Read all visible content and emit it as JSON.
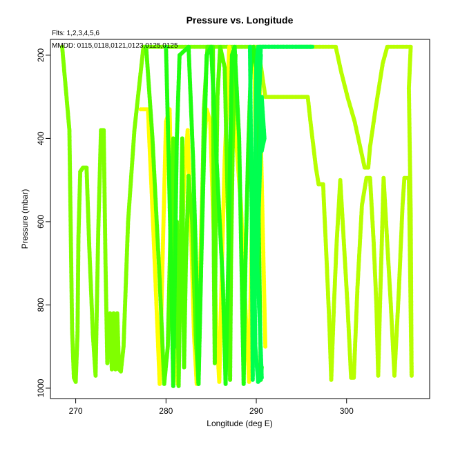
{
  "chart_data": {
    "type": "scatter",
    "title": "Pressure vs. Longitude",
    "xlabel": "Longitude (deg E)",
    "ylabel": "Pressure (mbar)",
    "annotations": {
      "flights": "Flts: 1,2,3,4,5,6",
      "dates": "MMDD: 0115,0118,0121,0123,0125,0125"
    },
    "xlim": [
      267.2,
      309.2
    ],
    "ylim": [
      1025,
      162
    ],
    "y_reversed": true,
    "xticks": [
      270,
      280,
      290,
      300
    ],
    "yticks": [
      200,
      400,
      600,
      800,
      1000
    ],
    "grid": false,
    "series": [
      {
        "color": "#80ff00",
        "points": [
          [
            268.5,
            180
          ],
          [
            269.3,
            380
          ],
          [
            269.6,
            860
          ],
          [
            269.8,
            975
          ],
          [
            270.0,
            985
          ],
          [
            270.2,
            870
          ],
          [
            270.3,
            640
          ],
          [
            270.5,
            480
          ],
          [
            270.8,
            470
          ],
          [
            271.2,
            470
          ],
          [
            271.5,
            660
          ],
          [
            271.9,
            870
          ],
          [
            272.2,
            970
          ],
          [
            272.5,
            620
          ],
          [
            272.8,
            380
          ],
          [
            273.1,
            380
          ],
          [
            273.3,
            700
          ],
          [
            273.5,
            940
          ],
          [
            273.8,
            820
          ],
          [
            274.0,
            955
          ],
          [
            274.2,
            820
          ],
          [
            274.4,
            955
          ],
          [
            274.6,
            820
          ],
          [
            274.8,
            955
          ],
          [
            275.0,
            960
          ],
          [
            275.3,
            900
          ],
          [
            275.8,
            600
          ],
          [
            276.5,
            380
          ],
          [
            277.5,
            180
          ],
          [
            289.0,
            180
          ],
          [
            292.0,
            180
          ],
          [
            296.3,
            180
          ]
        ]
      },
      {
        "color": "#ffff00",
        "points": [
          [
            277.2,
            330
          ],
          [
            278.0,
            330
          ],
          [
            278.6,
            620
          ],
          [
            279.0,
            830
          ],
          [
            279.3,
            990
          ],
          [
            279.7,
            620
          ],
          [
            280.0,
            360
          ],
          [
            280.4,
            330
          ],
          [
            280.7,
            640
          ],
          [
            281.0,
            870
          ],
          [
            281.3,
            990
          ],
          [
            281.7,
            700
          ],
          [
            282.0,
            500
          ],
          [
            282.4,
            380
          ],
          [
            282.8,
            640
          ],
          [
            283.1,
            870
          ],
          [
            283.4,
            990
          ],
          [
            283.8,
            700
          ],
          [
            284.1,
            460
          ],
          [
            284.5,
            330
          ],
          [
            284.9,
            360
          ],
          [
            285.3,
            640
          ],
          [
            285.6,
            870
          ],
          [
            285.9,
            985
          ],
          [
            286.2,
            700
          ],
          [
            286.5,
            450
          ],
          [
            286.8,
            300
          ],
          [
            287.0,
            180
          ],
          [
            287.5,
            330
          ],
          [
            288.3,
            560
          ],
          [
            288.8,
            810
          ],
          [
            289.2,
            985
          ],
          [
            289.5,
            620
          ],
          [
            289.9,
            420
          ],
          [
            289.8,
            180
          ],
          [
            290.3,
            200
          ],
          [
            290.8,
            700
          ],
          [
            291.0,
            900
          ]
        ]
      },
      {
        "color": "#b8ff00",
        "points": [
          [
            290.2,
            180
          ],
          [
            291.0,
            300
          ],
          [
            292.0,
            300
          ],
          [
            293.0,
            300
          ],
          [
            294.0,
            300
          ],
          [
            295.0,
            300
          ],
          [
            295.7,
            300
          ],
          [
            296.0,
            360
          ],
          [
            296.6,
            470
          ],
          [
            296.9,
            510
          ],
          [
            297.4,
            510
          ],
          [
            297.8,
            700
          ],
          [
            298.1,
            850
          ],
          [
            298.3,
            980
          ],
          [
            298.6,
            800
          ],
          [
            298.9,
            650
          ],
          [
            299.3,
            500
          ],
          [
            299.7,
            650
          ],
          [
            300.1,
            800
          ],
          [
            300.5,
            975
          ],
          [
            300.8,
            975
          ],
          [
            301.2,
            760
          ],
          [
            301.7,
            560
          ],
          [
            302.2,
            495
          ],
          [
            302.6,
            495
          ],
          [
            303.0,
            650
          ],
          [
            303.3,
            800
          ],
          [
            303.5,
            970
          ],
          [
            303.7,
            800
          ],
          [
            303.9,
            650
          ],
          [
            304.1,
            495
          ],
          [
            304.5,
            650
          ],
          [
            304.9,
            800
          ],
          [
            305.3,
            970
          ],
          [
            305.8,
            760
          ],
          [
            306.2,
            560
          ],
          [
            306.4,
            495
          ],
          [
            306.9,
            495
          ],
          [
            307.1,
            820
          ],
          [
            307.2,
            970
          ],
          [
            307.1,
            580
          ],
          [
            306.9,
            280
          ],
          [
            307.1,
            180
          ],
          [
            306.0,
            180
          ],
          [
            305.0,
            180
          ],
          [
            304.5,
            180
          ],
          [
            304.0,
            220
          ],
          [
            303.2,
            330
          ],
          [
            302.6,
            420
          ],
          [
            302.4,
            470
          ],
          [
            302.0,
            470
          ],
          [
            301.5,
            420
          ],
          [
            300.9,
            360
          ],
          [
            300.1,
            300
          ],
          [
            299.4,
            240
          ],
          [
            298.8,
            180
          ],
          [
            296.0,
            180
          ]
        ]
      },
      {
        "color": "#50ff00",
        "points": [
          [
            277.8,
            180
          ],
          [
            278.5,
            400
          ],
          [
            279.3,
            740
          ],
          [
            279.8,
            990
          ],
          [
            280.2,
            900
          ],
          [
            280.5,
            620
          ],
          [
            280.8,
            400
          ],
          [
            281.0,
            900
          ],
          [
            281.2,
            600
          ],
          [
            281.4,
            995
          ],
          [
            281.6,
            700
          ],
          [
            281.8,
            400
          ],
          [
            282.0,
            950
          ],
          [
            282.2,
            700
          ],
          [
            282.5,
            490
          ],
          [
            282.9,
            600
          ],
          [
            283.3,
            880
          ],
          [
            283.6,
            990
          ],
          [
            283.9,
            700
          ],
          [
            284.2,
            330
          ],
          [
            284.6,
            180
          ],
          [
            285.2,
            180
          ],
          [
            285.3,
            700
          ],
          [
            285.4,
            940
          ],
          [
            285.5,
            620
          ],
          [
            285.7,
            300
          ],
          [
            286.0,
            180
          ],
          [
            286.5,
            230
          ],
          [
            286.9,
            620
          ],
          [
            287.1,
            980
          ],
          [
            287.2,
            700
          ],
          [
            287.4,
            400
          ],
          [
            287.7,
            200
          ]
        ]
      },
      {
        "color": "#20ff10",
        "points": [
          [
            280.0,
            180
          ],
          [
            280.3,
            450
          ],
          [
            280.6,
            750
          ],
          [
            280.8,
            995
          ],
          [
            281.0,
            700
          ],
          [
            281.2,
            400
          ],
          [
            281.5,
            200
          ],
          [
            282.5,
            180
          ],
          [
            283.0,
            450
          ],
          [
            283.4,
            750
          ],
          [
            283.6,
            990
          ],
          [
            283.9,
            700
          ],
          [
            284.2,
            450
          ],
          [
            284.5,
            200
          ],
          [
            285.0,
            180
          ],
          [
            285.6,
            450
          ],
          [
            286.3,
            750
          ],
          [
            286.6,
            990
          ],
          [
            286.9,
            700
          ],
          [
            287.1,
            450
          ],
          [
            287.3,
            200
          ],
          [
            287.6,
            180
          ],
          [
            288.1,
            400
          ],
          [
            288.4,
            750
          ],
          [
            288.6,
            990
          ],
          [
            288.8,
            700
          ],
          [
            289.1,
            430
          ],
          [
            289.4,
            230
          ],
          [
            289.7,
            180
          ],
          [
            290.0,
            230
          ],
          [
            290.2,
            500
          ],
          [
            290.4,
            800
          ],
          [
            290.5,
            980
          ],
          [
            290.6,
            950
          ]
        ]
      },
      {
        "color": "#00ff50",
        "points": [
          [
            289.3,
            180
          ],
          [
            289.5,
            600
          ],
          [
            289.6,
            980
          ],
          [
            289.7,
            700
          ],
          [
            289.9,
            400
          ],
          [
            290.0,
            230
          ],
          [
            290.2,
            180
          ],
          [
            292.0,
            180
          ],
          [
            294.0,
            180
          ],
          [
            296.2,
            180
          ],
          [
            292.0,
            180
          ],
          [
            290.5,
            180
          ],
          [
            290.3,
            300
          ],
          [
            290.6,
            430
          ],
          [
            290.9,
            400
          ],
          [
            290.6,
            300
          ],
          [
            290.3,
            450
          ],
          [
            290.0,
            600
          ],
          [
            289.8,
            750
          ],
          [
            289.9,
            900
          ],
          [
            290.2,
            985
          ],
          [
            290.6,
            975
          ],
          [
            290.4,
            850
          ],
          [
            290.1,
            700
          ],
          [
            290.3,
            550
          ],
          [
            290.5,
            400
          ],
          [
            290.3,
            300
          ],
          [
            290.5,
            200
          ]
        ]
      }
    ]
  }
}
